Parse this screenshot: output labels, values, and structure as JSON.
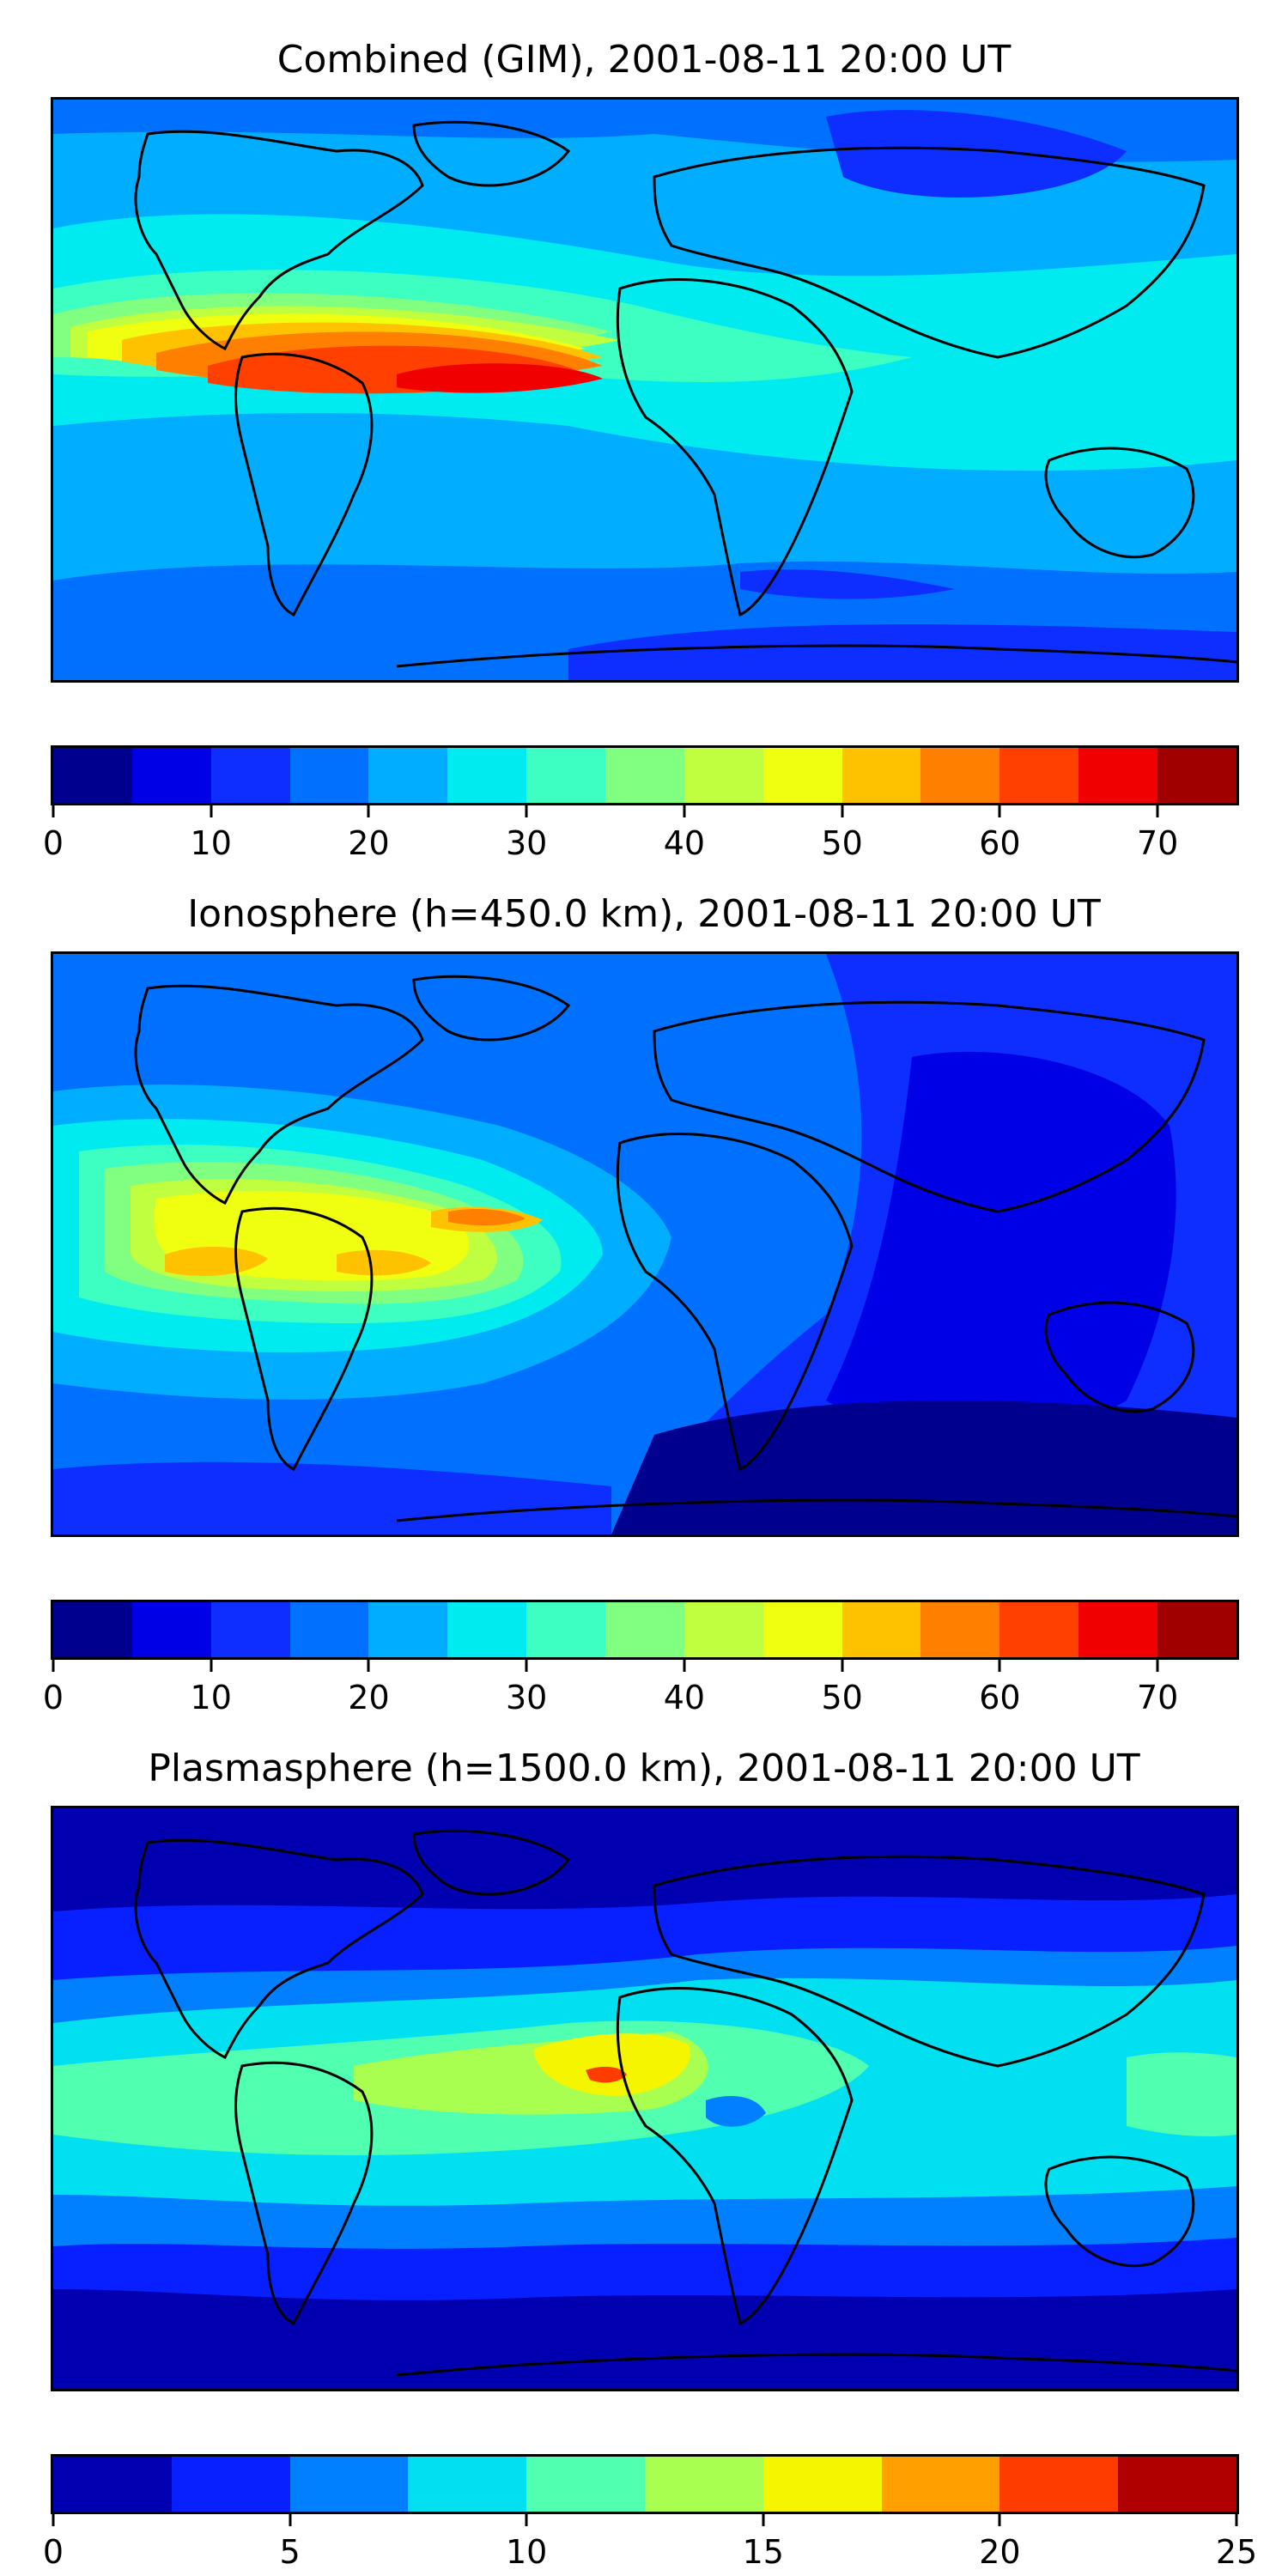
{
  "panels": [
    {
      "title": "Combined (GIM), 2001-08-11 20:00 UT",
      "colorbar": {
        "ticks": [
          "0",
          "10",
          "20",
          "30",
          "40",
          "50",
          "60",
          "70"
        ],
        "tick_values": [
          0,
          10,
          20,
          30,
          40,
          50,
          60,
          70
        ],
        "range": [
          0,
          75
        ],
        "colors": [
          "#00008f",
          "#0000e6",
          "#0d2eff",
          "#0070ff",
          "#00adff",
          "#00ebf0",
          "#3dffc2",
          "#80ff80",
          "#bfff40",
          "#f0ff0f",
          "#ffc200",
          "#ff8000",
          "#ff4000",
          "#f00000",
          "#a00000"
        ]
      }
    },
    {
      "title": "Ionosphere  (h=450.0 km), 2001-08-11 20:00 UT",
      "colorbar": {
        "ticks": [
          "0",
          "10",
          "20",
          "30",
          "40",
          "50",
          "60",
          "70"
        ],
        "tick_values": [
          0,
          10,
          20,
          30,
          40,
          50,
          60,
          70
        ],
        "range": [
          0,
          75
        ],
        "colors": [
          "#00008f",
          "#0000e6",
          "#0d2eff",
          "#0070ff",
          "#00adff",
          "#00ebf0",
          "#3dffc2",
          "#80ff80",
          "#bfff40",
          "#f0ff0f",
          "#ffc200",
          "#ff8000",
          "#ff4000",
          "#f00000",
          "#a00000"
        ]
      }
    },
    {
      "title": "Plasmasphere (h=1500.0 km), 2001-08-11 20:00 UT",
      "colorbar": {
        "ticks": [
          "0",
          "5",
          "10",
          "15",
          "20",
          "25"
        ],
        "tick_values": [
          0,
          5,
          10,
          15,
          20,
          25
        ],
        "range": [
          0,
          25
        ],
        "colors": [
          "#0000b0",
          "#0820ff",
          "#0080ff",
          "#00e0f0",
          "#50ffb0",
          "#a8ff50",
          "#f5f500",
          "#ffa000",
          "#ff3c00",
          "#b00000"
        ]
      }
    }
  ]
}
